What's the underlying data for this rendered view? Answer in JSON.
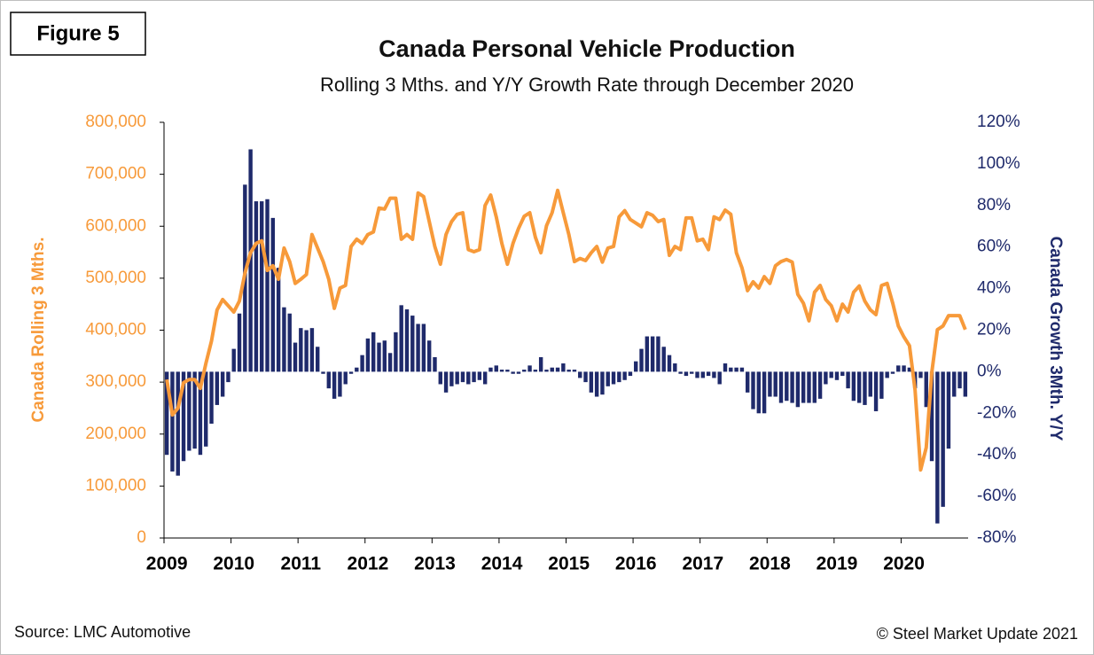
{
  "chart_data": {
    "type": "bar_line",
    "figure_label": "Figure 5",
    "title": "Canada Personal Vehicle Production",
    "subtitle": "Rolling 3 Mths. and Y/Y Growth Rate through December 2020",
    "y_label": "Canada  Rolling 3 Mths.",
    "y2_label": "Canada Growth 3Mth. Y/Y",
    "source": "Source: LMC Automotive",
    "credit": "© Steel Market Update 2021",
    "categories": [
      "2009",
      null,
      null,
      null,
      null,
      null,
      null,
      null,
      null,
      null,
      null,
      null,
      "2010",
      null,
      null,
      null,
      null,
      null,
      null,
      null,
      null,
      null,
      null,
      null,
      "2011",
      null,
      null,
      null,
      null,
      null,
      null,
      null,
      null,
      null,
      null,
      null,
      "2012",
      null,
      null,
      null,
      null,
      null,
      null,
      null,
      null,
      null,
      null,
      null,
      "2013",
      null,
      null,
      null,
      null,
      null,
      null,
      null,
      null,
      null,
      null,
      null,
      "2014",
      null,
      null,
      null,
      null,
      null,
      null,
      null,
      null,
      null,
      null,
      null,
      "2015",
      null,
      null,
      null,
      null,
      null,
      null,
      null,
      null,
      null,
      null,
      null,
      "2016",
      null,
      null,
      null,
      null,
      null,
      null,
      null,
      null,
      null,
      null,
      null,
      "2017",
      null,
      null,
      null,
      null,
      null,
      null,
      null,
      null,
      null,
      null,
      null,
      "2018",
      null,
      null,
      null,
      null,
      null,
      null,
      null,
      null,
      null,
      null,
      null,
      "2019",
      null,
      null,
      null,
      null,
      null,
      null,
      null,
      null,
      null,
      null,
      null,
      "2020",
      null,
      null,
      null,
      null,
      null,
      null,
      null,
      null,
      null,
      null,
      null
    ],
    "series": [
      {
        "name": "Canada Growth 3Mth. Y/Y",
        "type": "bar",
        "axis": "y2",
        "color": "#1f2a6b",
        "values": [
          -40,
          -48,
          -50,
          -43,
          -38,
          -37,
          -40,
          -36,
          -25,
          -16,
          -12,
          -5,
          11,
          28,
          90,
          107,
          82,
          82,
          83,
          74,
          50,
          31,
          28,
          14,
          21,
          20,
          21,
          12,
          -1,
          -8,
          -13,
          -12,
          -6,
          -1,
          2,
          8,
          16,
          19,
          14,
          15,
          9,
          19,
          32,
          30,
          27,
          23,
          23,
          15,
          7,
          -6,
          -10,
          -7,
          -6,
          -5,
          -6,
          -5,
          -4,
          -6,
          2,
          3,
          1,
          1,
          -1,
          -1,
          1,
          3,
          1,
          7,
          1,
          2,
          2,
          4,
          1,
          1,
          -3,
          -5,
          -10,
          -12,
          -11,
          -7,
          -6,
          -5,
          -4,
          -2,
          5,
          11,
          17,
          17,
          17,
          12,
          8,
          4,
          -1,
          -2,
          -1,
          -3,
          -3,
          -2,
          -3,
          -6,
          4,
          2,
          2,
          2,
          -10,
          -18,
          -20,
          -20,
          -12,
          -12,
          -15,
          -14,
          -15,
          -17,
          -15,
          -15,
          -15,
          -13,
          -6,
          -3,
          -4,
          -2,
          -8,
          -14,
          -15,
          -16,
          -12,
          -19,
          -13,
          -3,
          -1,
          3,
          3,
          2,
          -8,
          -3,
          -17,
          -43,
          -73,
          -65,
          -37,
          -12,
          -8,
          -12
        ]
      },
      {
        "name": "Canada  Rolling 3 Mths.",
        "type": "line",
        "axis": "y",
        "color": "#f79a3a",
        "values": [
          305000,
          237000,
          250000,
          299000,
          305000,
          305000,
          288000,
          336000,
          379000,
          439000,
          459000,
          447000,
          435000,
          456000,
          510000,
          549000,
          567000,
          572000,
          515000,
          524000,
          498000,
          558000,
          532000,
          490000,
          498000,
          507000,
          584000,
          558000,
          532000,
          498000,
          442000,
          481000,
          486000,
          561000,
          575000,
          567000,
          584000,
          589000,
          635000,
          633000,
          654000,
          654000,
          575000,
          584000,
          575000,
          664000,
          657000,
          609000,
          561000,
          527000,
          584000,
          609000,
          623000,
          626000,
          555000,
          551000,
          555000,
          640000,
          660000,
          618000,
          567000,
          527000,
          567000,
          596000,
          619000,
          626000,
          579000,
          549000,
          601000,
          626000,
          669000,
          626000,
          584000,
          532000,
          538000,
          534000,
          549000,
          561000,
          531000,
          558000,
          561000,
          618000,
          630000,
          613000,
          606000,
          599000,
          626000,
          621000,
          609000,
          613000,
          544000,
          561000,
          555000,
          616000,
          616000,
          572000,
          575000,
          555000,
          618000,
          613000,
          631000,
          623000,
          549000,
          520000,
          476000,
          493000,
          481000,
          503000,
          490000,
          524000,
          532000,
          536000,
          531000,
          469000,
          452000,
          418000,
          473000,
          486000,
          459000,
          447000,
          418000,
          450000,
          435000,
          473000,
          485000,
          456000,
          439000,
          430000,
          486000,
          490000,
          452000,
          408000,
          387000,
          370000,
          285000,
          131000,
          174000,
          319000,
          401000,
          408000,
          428000,
          428000,
          428000,
          401000
        ]
      }
    ],
    "ylim": [
      0,
      800000
    ],
    "yticks": [
      0,
      {
        "value": 100000,
        "label": "100,000"
      },
      {
        "value": 200000,
        "label": "200,000"
      },
      {
        "value": 300000,
        "label": "300,000"
      },
      {
        "value": 400000,
        "label": "400,000"
      },
      {
        "value": 500000,
        "label": "500,000"
      },
      {
        "value": 600000,
        "label": "600,000"
      },
      {
        "value": 700000,
        "label": "700,000"
      },
      {
        "value": 800000,
        "label": "800,000"
      }
    ],
    "y2lim": [
      -80,
      120
    ],
    "y2ticks": [
      {
        "value": -80,
        "label": "-80%"
      },
      {
        "value": -60,
        "label": "-60%"
      },
      {
        "value": -40,
        "label": "-40%"
      },
      {
        "value": -20,
        "label": "-20%"
      },
      {
        "value": 0,
        "label": "0%"
      },
      {
        "value": 20,
        "label": "20%"
      },
      {
        "value": 40,
        "label": "40%"
      },
      {
        "value": 60,
        "label": "60%"
      },
      {
        "value": 80,
        "label": "80%"
      },
      {
        "value": 100,
        "label": "100%"
      },
      {
        "value": 120,
        "label": "120%"
      }
    ],
    "y_color": "#f79a3a",
    "y2_color": "#1f2a6b"
  }
}
